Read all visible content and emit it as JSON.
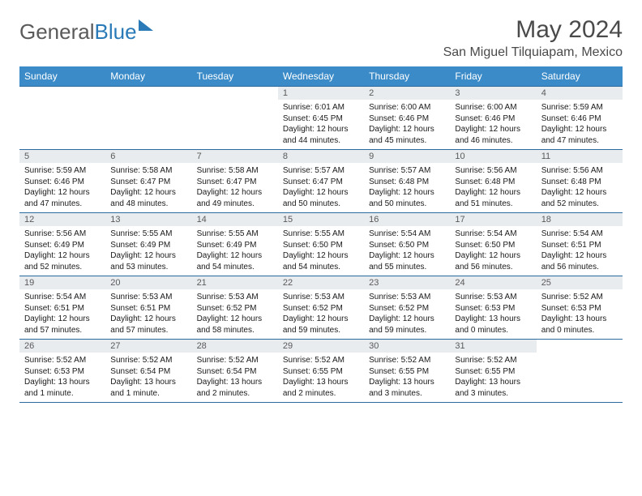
{
  "logo": {
    "part1": "General",
    "part2": "Blue"
  },
  "title": "May 2024",
  "location": "San Miguel Tilquiapam, Mexico",
  "day_headers": [
    "Sunday",
    "Monday",
    "Tuesday",
    "Wednesday",
    "Thursday",
    "Friday",
    "Saturday"
  ],
  "colors": {
    "header_bg": "#3b8bc8",
    "header_border": "#2a6a9e",
    "daynum_bg": "#e8ecef",
    "logo_gray": "#5a5a5a",
    "logo_blue": "#2a7ab8",
    "title_color": "#4a4a4a"
  },
  "weeks": [
    [
      null,
      null,
      null,
      {
        "n": "1",
        "sr": "6:01 AM",
        "ss": "6:45 PM",
        "dl": "12 hours and 44 minutes."
      },
      {
        "n": "2",
        "sr": "6:00 AM",
        "ss": "6:46 PM",
        "dl": "12 hours and 45 minutes."
      },
      {
        "n": "3",
        "sr": "6:00 AM",
        "ss": "6:46 PM",
        "dl": "12 hours and 46 minutes."
      },
      {
        "n": "4",
        "sr": "5:59 AM",
        "ss": "6:46 PM",
        "dl": "12 hours and 47 minutes."
      }
    ],
    [
      {
        "n": "5",
        "sr": "5:59 AM",
        "ss": "6:46 PM",
        "dl": "12 hours and 47 minutes."
      },
      {
        "n": "6",
        "sr": "5:58 AM",
        "ss": "6:47 PM",
        "dl": "12 hours and 48 minutes."
      },
      {
        "n": "7",
        "sr": "5:58 AM",
        "ss": "6:47 PM",
        "dl": "12 hours and 49 minutes."
      },
      {
        "n": "8",
        "sr": "5:57 AM",
        "ss": "6:47 PM",
        "dl": "12 hours and 50 minutes."
      },
      {
        "n": "9",
        "sr": "5:57 AM",
        "ss": "6:48 PM",
        "dl": "12 hours and 50 minutes."
      },
      {
        "n": "10",
        "sr": "5:56 AM",
        "ss": "6:48 PM",
        "dl": "12 hours and 51 minutes."
      },
      {
        "n": "11",
        "sr": "5:56 AM",
        "ss": "6:48 PM",
        "dl": "12 hours and 52 minutes."
      }
    ],
    [
      {
        "n": "12",
        "sr": "5:56 AM",
        "ss": "6:49 PM",
        "dl": "12 hours and 52 minutes."
      },
      {
        "n": "13",
        "sr": "5:55 AM",
        "ss": "6:49 PM",
        "dl": "12 hours and 53 minutes."
      },
      {
        "n": "14",
        "sr": "5:55 AM",
        "ss": "6:49 PM",
        "dl": "12 hours and 54 minutes."
      },
      {
        "n": "15",
        "sr": "5:55 AM",
        "ss": "6:50 PM",
        "dl": "12 hours and 54 minutes."
      },
      {
        "n": "16",
        "sr": "5:54 AM",
        "ss": "6:50 PM",
        "dl": "12 hours and 55 minutes."
      },
      {
        "n": "17",
        "sr": "5:54 AM",
        "ss": "6:50 PM",
        "dl": "12 hours and 56 minutes."
      },
      {
        "n": "18",
        "sr": "5:54 AM",
        "ss": "6:51 PM",
        "dl": "12 hours and 56 minutes."
      }
    ],
    [
      {
        "n": "19",
        "sr": "5:54 AM",
        "ss": "6:51 PM",
        "dl": "12 hours and 57 minutes."
      },
      {
        "n": "20",
        "sr": "5:53 AM",
        "ss": "6:51 PM",
        "dl": "12 hours and 57 minutes."
      },
      {
        "n": "21",
        "sr": "5:53 AM",
        "ss": "6:52 PM",
        "dl": "12 hours and 58 minutes."
      },
      {
        "n": "22",
        "sr": "5:53 AM",
        "ss": "6:52 PM",
        "dl": "12 hours and 59 minutes."
      },
      {
        "n": "23",
        "sr": "5:53 AM",
        "ss": "6:52 PM",
        "dl": "12 hours and 59 minutes."
      },
      {
        "n": "24",
        "sr": "5:53 AM",
        "ss": "6:53 PM",
        "dl": "13 hours and 0 minutes."
      },
      {
        "n": "25",
        "sr": "5:52 AM",
        "ss": "6:53 PM",
        "dl": "13 hours and 0 minutes."
      }
    ],
    [
      {
        "n": "26",
        "sr": "5:52 AM",
        "ss": "6:53 PM",
        "dl": "13 hours and 1 minute."
      },
      {
        "n": "27",
        "sr": "5:52 AM",
        "ss": "6:54 PM",
        "dl": "13 hours and 1 minute."
      },
      {
        "n": "28",
        "sr": "5:52 AM",
        "ss": "6:54 PM",
        "dl": "13 hours and 2 minutes."
      },
      {
        "n": "29",
        "sr": "5:52 AM",
        "ss": "6:55 PM",
        "dl": "13 hours and 2 minutes."
      },
      {
        "n": "30",
        "sr": "5:52 AM",
        "ss": "6:55 PM",
        "dl": "13 hours and 3 minutes."
      },
      {
        "n": "31",
        "sr": "5:52 AM",
        "ss": "6:55 PM",
        "dl": "13 hours and 3 minutes."
      },
      null
    ]
  ],
  "labels": {
    "sunrise": "Sunrise: ",
    "sunset": "Sunset: ",
    "daylight": "Daylight: "
  }
}
